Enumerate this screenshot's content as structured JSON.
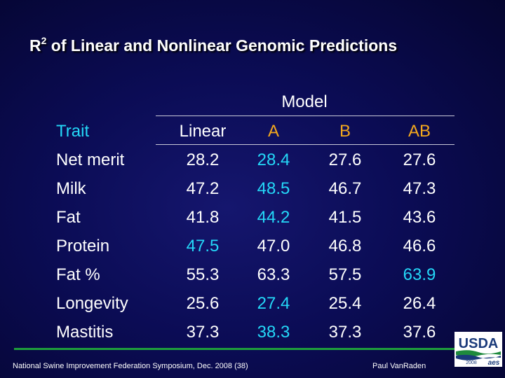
{
  "title_main": "R",
  "title_sup": "2",
  "title_rest": " of Linear and Nonlinear Genomic Predictions",
  "table": {
    "group_header": "Model",
    "headers": {
      "trait": "Trait",
      "linear": "Linear",
      "a": "A",
      "b": "B",
      "ab": "AB"
    },
    "rows": [
      {
        "trait": "Net merit",
        "linear": "28.2",
        "a": "28.4",
        "b": "27.6",
        "ab": "27.6"
      },
      {
        "trait": "Milk",
        "linear": "47.2",
        "a": "48.5",
        "b": "46.7",
        "ab": "47.3"
      },
      {
        "trait": "Fat",
        "linear": "41.8",
        "a": "44.2",
        "b": "41.5",
        "ab": "43.6"
      },
      {
        "trait": "Protein",
        "linear": "47.5",
        "a": "47.0",
        "b": "46.8",
        "ab": "46.6"
      },
      {
        "trait": "Fat %",
        "linear": "55.3",
        "a": "63.3",
        "b": "57.5",
        "ab": "63.9"
      },
      {
        "trait": "Longevity",
        "linear": "25.6",
        "a": "27.4",
        "b": "25.4",
        "ab": "26.4"
      },
      {
        "trait": "Mastitis",
        "linear": "37.3",
        "a": "38.3",
        "b": "37.3",
        "ab": "37.6"
      }
    ]
  },
  "colors": {
    "highlight": "#24d8f8",
    "header_accent": "#f4a81d",
    "text": "#ffffff",
    "background": "#0b0c55"
  },
  "footer": {
    "left": "National Swine Improvement Federation Symposium, Dec. 2008 (38)",
    "right": "Paul VanRaden"
  },
  "logo": {
    "name": "usda-logo",
    "text": "USDA",
    "year": "2008",
    "mark": "aes"
  }
}
